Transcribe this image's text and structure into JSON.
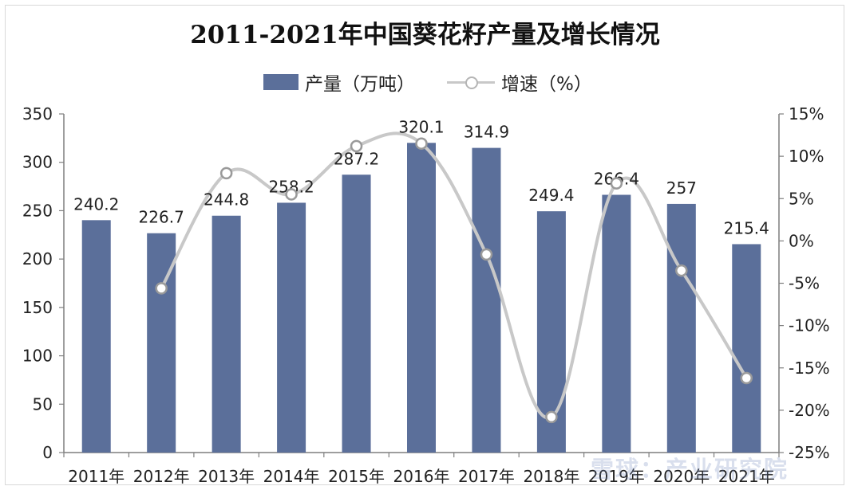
{
  "chart_data": {
    "type": "bar",
    "title": "2011-2021年中国葵花籽产量及增长情况",
    "categories": [
      "2011年",
      "2012年",
      "2013年",
      "2014年",
      "2015年",
      "2016年",
      "2017年",
      "2018年",
      "2019年",
      "2020年",
      "2021年"
    ],
    "series": [
      {
        "name": "产量（万吨）",
        "type": "bar",
        "axis": "left",
        "color": "#5b6f9a",
        "values": [
          240.2,
          226.7,
          244.8,
          258.2,
          287.2,
          320.1,
          314.9,
          249.4,
          266.4,
          257,
          215.4
        ],
        "labels": [
          "240.2",
          "226.7",
          "244.8",
          "258.2",
          "287.2",
          "320.1",
          "314.9",
          "249.4",
          "266.4",
          "257",
          "215.4"
        ]
      },
      {
        "name": "增速（%）",
        "type": "line",
        "axis": "right",
        "color": "#c8c8c8",
        "values": [
          null,
          -5.6,
          8.0,
          5.5,
          11.2,
          11.5,
          -1.6,
          -20.8,
          6.8,
          -3.5,
          -16.2
        ]
      }
    ],
    "y_left": {
      "min": 0,
      "max": 350,
      "ticks": [
        "0",
        "50",
        "100",
        "150",
        "200",
        "250",
        "300",
        "350"
      ]
    },
    "y_right": {
      "min": -25,
      "max": 15,
      "ticks": [
        "-25%",
        "-20%",
        "-15%",
        "-10%",
        "-5%",
        "0%",
        "5%",
        "10%",
        "15%"
      ]
    },
    "legend_position": "top-center",
    "grid": false
  },
  "watermark": "雪球：产业研究院"
}
